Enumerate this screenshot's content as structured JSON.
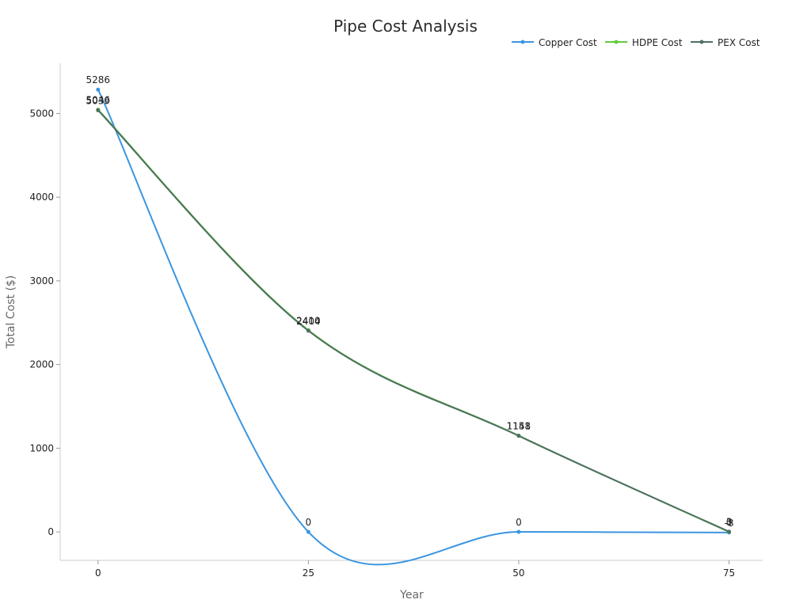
{
  "chart_data": {
    "type": "line",
    "title": "Pipe Cost Analysis",
    "xlabel": "Year",
    "ylabel": "Total Cost ($)",
    "x": [
      0,
      25,
      50,
      75
    ],
    "xlim": [
      -4.5,
      79.0
    ],
    "ylim": [
      -340,
      5600
    ],
    "xticks": [
      0,
      25,
      50,
      75
    ],
    "yticks": [
      0,
      1000,
      2000,
      3000,
      4000,
      5000
    ],
    "legend_position": "top-right",
    "grid": false,
    "smooth": true,
    "series": [
      {
        "name": "Copper Cost",
        "color": "#3b95e0",
        "values": [
          5286,
          0,
          0,
          -8
        ],
        "labels": [
          "5286",
          "0",
          "0",
          "-8"
        ]
      },
      {
        "name": "HDPE Cost",
        "color": "#5ecb3a",
        "values": [
          5046,
          2410,
          1151,
          0
        ],
        "labels": [
          "5046",
          "2410",
          "1151",
          "0"
        ]
      },
      {
        "name": "PEX Cost",
        "color": "#4e7060",
        "values": [
          5039,
          2404,
          1148,
          3
        ],
        "labels": [
          "5039",
          "2404",
          "1148",
          "3"
        ]
      }
    ]
  }
}
